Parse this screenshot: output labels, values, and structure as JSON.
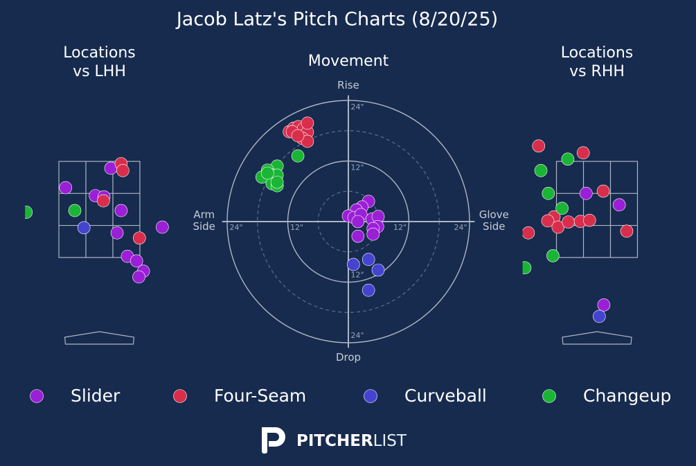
{
  "title": "Jacob Latz's Pitch Charts (8/20/25)",
  "logo": {
    "bold": "PITCHER",
    "light": "LIST"
  },
  "chart_data": [
    {
      "type": "scatter",
      "title": "Locations vs LHH",
      "xlim": [
        -1.3,
        1.3
      ],
      "ylim": [
        0,
        4.5
      ],
      "series": [
        {
          "name": "Slider",
          "color": "#9b1fd6",
          "x": [
            0.2,
            -0.59,
            -0.07,
            0.08,
            0.38,
            0.31,
            1.1,
            0.49,
            0.65,
            0.77,
            0.69
          ],
          "values": [
            3.16,
            2.82,
            2.68,
            2.66,
            2.42,
            2.03,
            2.13,
            1.62,
            1.54,
            1.36,
            1.26
          ]
        },
        {
          "name": "Four-Seam",
          "color": "#d82e4c",
          "x": [
            0.38,
            0.41,
            0.07,
            0.7
          ],
          "values": [
            3.24,
            3.12,
            2.59,
            1.94
          ]
        },
        {
          "name": "Curveball",
          "color": "#4444d0",
          "x": [
            -0.27
          ],
          "values": [
            2.12
          ]
        },
        {
          "name": "Changeup",
          "color": "#1ab534",
          "x": [
            -1.28,
            -0.43
          ],
          "values": [
            2.39,
            2.42
          ]
        }
      ]
    },
    {
      "type": "movement",
      "title": "Movement",
      "labels": {
        "top": "Rise",
        "bottom": "Drop",
        "left": "Arm Side",
        "right": "Glove Side"
      },
      "xlim": [
        -25,
        25
      ],
      "ylim": [
        -25,
        25
      ],
      "xticks": [
        {
          "value": -24,
          "label": "24\""
        },
        {
          "value": -12,
          "label": "12\""
        },
        {
          "value": 12,
          "label": "12\""
        },
        {
          "value": 24,
          "label": "24\""
        }
      ],
      "yticks": [
        {
          "value": 24,
          "label": "24\""
        },
        {
          "value": 12,
          "label": "12\""
        },
        {
          "value": -12,
          "label": "12\""
        },
        {
          "value": -24,
          "label": "24\""
        }
      ],
      "series": [
        {
          "name": "Slider",
          "color": "#9b1fd6",
          "x": [
            4.0,
            2.7,
            1.6,
            0.0,
            1.1,
            2.5,
            1.9,
            4.7,
            5.9,
            5.8,
            4.9,
            4.9,
            1.9
          ],
          "values": [
            4.0,
            2.9,
            2.3,
            1.1,
            0.8,
            1.4,
            0.0,
            0.5,
            1.0,
            -1.0,
            -1.4,
            -2.5,
            -2.9
          ]
        },
        {
          "name": "Four-Seam",
          "color": "#d82e4c",
          "x": [
            -11.7,
            -10.8,
            -9.9,
            -8.9,
            -8.1,
            -8.1,
            -9.1,
            -8.1,
            -11.1,
            -10.0
          ],
          "values": [
            17.8,
            18.5,
            18.8,
            18.4,
            17.7,
            19.5,
            16.5,
            15.9,
            17.8,
            17.0
          ]
        },
        {
          "name": "Curveball",
          "color": "#4444d0",
          "x": [
            1.0,
            4.0,
            5.9,
            4.0
          ],
          "values": [
            -8.5,
            -7.5,
            -9.6,
            -13.6
          ]
        },
        {
          "name": "Changeup",
          "color": "#1ab534",
          "x": [
            -14.1,
            -16.0,
            -15.2,
            -17.1,
            -14.1,
            -15.1,
            -14.1,
            -16.0,
            -14.1,
            -10.0
          ],
          "values": [
            11.0,
            10.2,
            9.3,
            8.8,
            9.2,
            7.5,
            7.1,
            9.6,
            7.8,
            13.0
          ]
        }
      ]
    },
    {
      "type": "scatter",
      "title": "Locations vs RHH",
      "xlim": [
        -1.3,
        1.3
      ],
      "ylim": [
        0,
        4.5
      ],
      "series": [
        {
          "name": "Slider",
          "color": "#9b1fd6",
          "x": [
            -0.19,
            0.39,
            0.12
          ],
          "values": [
            2.72,
            2.52,
            0.77
          ]
        },
        {
          "name": "Four-Seam",
          "color": "#d82e4c",
          "x": [
            -1.02,
            -0.24,
            0.11,
            -0.75,
            -0.86,
            -0.68,
            -0.5,
            -0.29,
            -0.13,
            0.52,
            -1.2
          ],
          "values": [
            3.55,
            3.43,
            2.76,
            2.31,
            2.24,
            2.13,
            2.22,
            2.23,
            2.25,
            2.06,
            2.03
          ]
        },
        {
          "name": "Curveball",
          "color": "#4444d0",
          "x": [
            0.04
          ],
          "values": [
            0.57
          ]
        },
        {
          "name": "Changeup",
          "color": "#1ab534",
          "x": [
            -0.98,
            -0.51,
            -0.85,
            -0.61,
            -0.77,
            -1.26
          ],
          "values": [
            3.12,
            3.32,
            2.72,
            2.46,
            1.63,
            1.42
          ]
        }
      ]
    }
  ]
}
